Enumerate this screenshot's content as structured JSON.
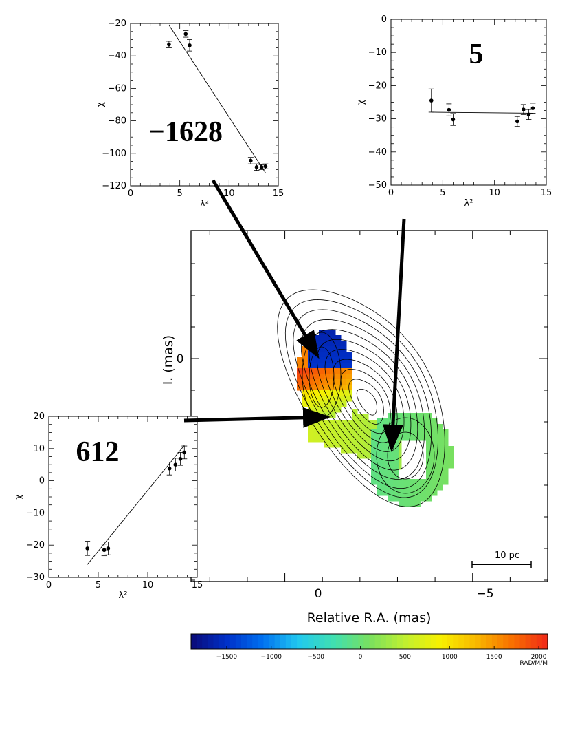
{
  "colors": {
    "arrow": "#000000",
    "contour": "#000000",
    "colormap": [
      "#0a0a78",
      "#0030c8",
      "#0070f0",
      "#20c8f0",
      "#40e0b0",
      "#78e060",
      "#c0f030",
      "#f8f000",
      "#f8b800",
      "#f87000",
      "#f02818"
    ]
  },
  "chart_data": [
    {
      "type": "scatter",
      "name": "top-left-inset",
      "annotation": "−1628",
      "xlabel": "λ²",
      "ylabel": "χ",
      "xlim": [
        0,
        15
      ],
      "ylim": [
        -120,
        -20
      ],
      "xticks": [
        "0",
        "5",
        "10",
        "15"
      ],
      "yticks": [
        "−120",
        "−100",
        "−80",
        "−60",
        "−40",
        "−20"
      ],
      "points": [
        {
          "x": 3.9,
          "y": -33,
          "err": 2
        },
        {
          "x": 5.6,
          "y": -26.5,
          "err": 2
        },
        {
          "x": 6.0,
          "y": -33.5,
          "err": 3.5
        },
        {
          "x": 12.2,
          "y": -104.5,
          "err": 2
        },
        {
          "x": 12.8,
          "y": -108.5,
          "err": 2
        },
        {
          "x": 13.3,
          "y": -108.5,
          "err": 1.5
        },
        {
          "x": 13.7,
          "y": -108,
          "err": 1.5
        }
      ],
      "fit": [
        [
          3.9,
          -21
        ],
        [
          13.7,
          -112
        ]
      ]
    },
    {
      "type": "scatter",
      "name": "top-right-inset",
      "annotation": "5",
      "xlabel": "λ²",
      "ylabel": "χ",
      "xlim": [
        0,
        15
      ],
      "ylim": [
        -50,
        0
      ],
      "xticks": [
        "0",
        "5",
        "10",
        "15"
      ],
      "yticks": [
        "−50",
        "−40",
        "−30",
        "−20",
        "−10",
        "0"
      ],
      "points": [
        {
          "x": 3.9,
          "y": -24.5,
          "err": 3.5
        },
        {
          "x": 5.6,
          "y": -27.3,
          "err": 1.8
        },
        {
          "x": 6.0,
          "y": -30.2,
          "err": 1.8
        },
        {
          "x": 12.2,
          "y": -30.8,
          "err": 1.5
        },
        {
          "x": 12.8,
          "y": -27.2,
          "err": 1.5
        },
        {
          "x": 13.3,
          "y": -28.7,
          "err": 1.5
        },
        {
          "x": 13.7,
          "y": -26.8,
          "err": 1.5
        }
      ],
      "fit": [
        [
          3.9,
          -28.0
        ],
        [
          13.7,
          -28.3
        ]
      ]
    },
    {
      "type": "scatter",
      "name": "bottom-left-inset",
      "annotation": "612",
      "xlabel": "λ²",
      "ylabel": "χ",
      "xlim": [
        0,
        15
      ],
      "ylim": [
        -30,
        20
      ],
      "xticks": [
        "0",
        "5",
        "10",
        "15"
      ],
      "yticks": [
        "−30",
        "−20",
        "−10",
        "0",
        "10",
        "20"
      ],
      "points": [
        {
          "x": 3.9,
          "y": -21,
          "err": 2.2
        },
        {
          "x": 5.6,
          "y": -21.5,
          "err": 1.8
        },
        {
          "x": 6.0,
          "y": -21,
          "err": 2
        },
        {
          "x": 12.2,
          "y": 3.8,
          "err": 2
        },
        {
          "x": 12.8,
          "y": 5,
          "err": 2
        },
        {
          "x": 13.3,
          "y": 6.8,
          "err": 2
        },
        {
          "x": 13.7,
          "y": 8.8,
          "err": 2
        }
      ],
      "fit": [
        [
          3.9,
          -26
        ],
        [
          13.7,
          11
        ]
      ]
    },
    {
      "type": "heatmap",
      "name": "rotation-measure-map",
      "xlabel": "Relative R.A. (mas)",
      "ylabel": "Relative Decl. (mas)",
      "ylabel_visible": "l. (mas)",
      "xlim": [
        2.5,
        -7.0
      ],
      "xticks": [
        "0",
        "−5"
      ],
      "yticks": [
        "0"
      ],
      "scale_bar_label": "10 pc",
      "colorbar": {
        "min": -1900,
        "max": 2100,
        "ticks": [
          "−1500",
          "−1000",
          "−500",
          "0",
          "500",
          "1000",
          "1500",
          "2000"
        ],
        "units": "RAD/M/M"
      },
      "region_values": {
        "core_north": -1628,
        "core_south": 2000,
        "jet_inner": 612,
        "jet_outer": 5
      }
    }
  ]
}
